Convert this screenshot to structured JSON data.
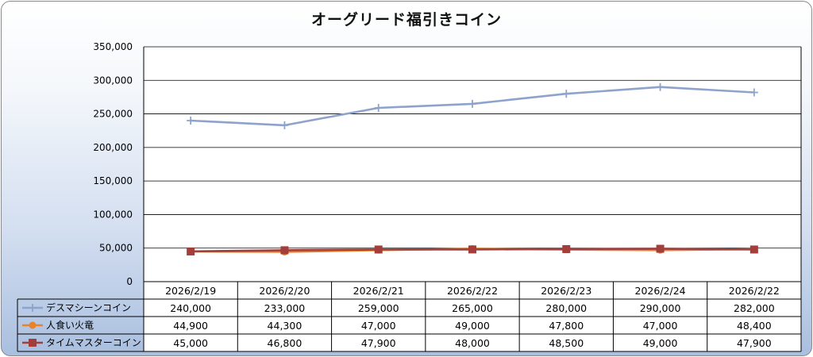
{
  "chart_data": {
    "type": "line",
    "title": "オーグリード福引きコイン",
    "categories": [
      "2026/2/19",
      "2026/2/20",
      "2026/2/21",
      "2026/2/22",
      "2026/2/23",
      "2026/2/24",
      "2026/2/22"
    ],
    "ylim": [
      0,
      350000
    ],
    "yticks": [
      0,
      50000,
      100000,
      150000,
      200000,
      250000,
      300000,
      350000
    ],
    "ytick_labels": [
      "0",
      "50,000",
      "100,000",
      "150,000",
      "200,000",
      "250,000",
      "300,000",
      "350,000"
    ],
    "grid": true,
    "legend": "data-table-left",
    "series": [
      {
        "name": "デスマシーンコイン",
        "marker": "plus",
        "color": "#8ea3cc",
        "values": [
          240000,
          233000,
          259000,
          265000,
          280000,
          290000,
          282000
        ],
        "labels": [
          "240,000",
          "233,000",
          "259,000",
          "265,000",
          "280,000",
          "290,000",
          "282,000"
        ]
      },
      {
        "name": "人食い火竜",
        "marker": "circle",
        "color": "#e8832c",
        "values": [
          44900,
          44300,
          47000,
          49000,
          47800,
          47000,
          48400
        ],
        "labels": [
          "44,900",
          "44,300",
          "47,000",
          "49,000",
          "47,800",
          "47,000",
          "48,400"
        ]
      },
      {
        "name": "タイムマスターコイン",
        "marker": "square",
        "color": "#a33e3a",
        "values": [
          45000,
          46800,
          47900,
          48000,
          48500,
          49000,
          47900
        ],
        "labels": [
          "45,000",
          "46,800",
          "47,900",
          "48,000",
          "48,500",
          "49,000",
          "47,900"
        ]
      }
    ]
  }
}
